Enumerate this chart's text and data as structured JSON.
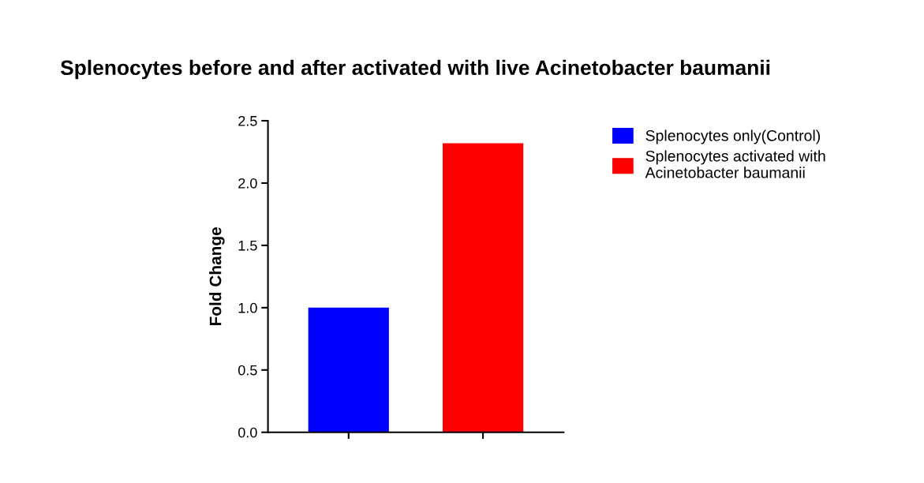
{
  "chart_data": {
    "type": "bar",
    "title": "Splenocytes before and after activated with live Acinetobacter baumanii",
    "ylabel": "Fold Change",
    "categories": [
      null,
      null
    ],
    "series": [
      {
        "name": "Splenocytes only(Control)",
        "color": "#0000ff",
        "values": [
          1.0,
          null
        ]
      },
      {
        "name": "Splenocytes activated with\nAcinetobacter baumanii",
        "color": "#ff0000",
        "values": [
          null,
          2.32
        ]
      }
    ],
    "ylim": [
      0,
      2.5
    ],
    "yticks": [
      {
        "value": 0,
        "label": "0.0"
      },
      {
        "value": 0.5,
        "label": "0.5"
      },
      {
        "value": 1.0,
        "label": "1.0"
      },
      {
        "value": 1.5,
        "label": "1.5"
      },
      {
        "value": 2.0,
        "label": "2.0"
      },
      {
        "value": 2.5,
        "label": "2.5"
      }
    ],
    "grid": false,
    "legend": "right"
  }
}
